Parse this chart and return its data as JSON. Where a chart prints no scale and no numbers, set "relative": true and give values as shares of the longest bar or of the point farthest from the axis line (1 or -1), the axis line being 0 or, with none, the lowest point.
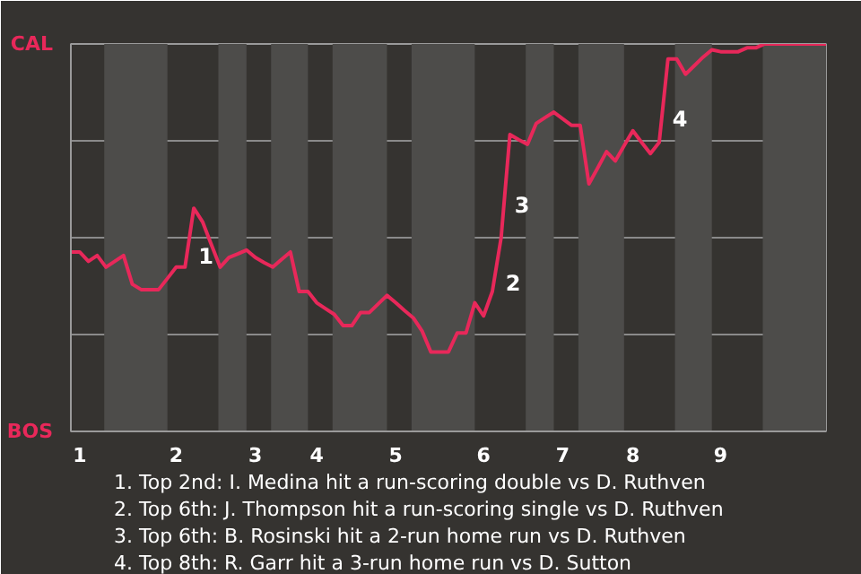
{
  "chart_data": {
    "type": "line",
    "relative": true,
    "categories": [
      null,
      "1",
      null,
      null,
      null,
      null,
      null,
      null,
      null,
      null,
      null,
      null,
      "2",
      null,
      null,
      null,
      null,
      null,
      null,
      null,
      null,
      "3",
      null,
      null,
      null,
      null,
      null,
      null,
      "4",
      null,
      null,
      null,
      null,
      null,
      null,
      null,
      null,
      "5",
      null,
      null,
      null,
      null,
      null,
      null,
      null,
      null,
      null,
      "6",
      null,
      null,
      null,
      null,
      null,
      null,
      null,
      null,
      "7",
      null,
      null,
      null,
      null,
      null,
      null,
      null,
      "8",
      null,
      null,
      null,
      null,
      null,
      null,
      null,
      null,
      null,
      "9",
      null,
      null,
      null,
      null,
      null,
      null,
      null,
      null,
      null,
      null,
      null,
      null
    ],
    "series": [
      {
        "color": "#e8285a",
        "values": [
          0.463,
          0.463,
          0.439,
          0.454,
          0.424,
          0.439,
          0.454,
          0.38,
          0.366,
          0.366,
          0.366,
          0.395,
          0.424,
          0.424,
          0.576,
          0.541,
          0.482,
          0.424,
          0.449,
          0.458,
          0.468,
          0.449,
          0.436,
          0.424,
          0.444,
          0.463,
          0.361,
          0.361,
          0.332,
          0.317,
          0.302,
          0.273,
          0.273,
          0.307,
          0.307,
          0.329,
          0.351,
          0.332,
          0.312,
          0.293,
          0.259,
          0.205,
          0.205,
          0.205,
          0.254,
          0.254,
          0.332,
          0.298,
          0.361,
          0.5,
          0.766,
          0.753,
          0.741,
          0.795,
          0.81,
          0.824,
          0.807,
          0.79,
          0.79,
          0.639,
          0.68,
          0.722,
          0.698,
          0.737,
          0.776,
          0.746,
          0.717,
          0.746,
          0.961,
          0.961,
          0.922,
          0.944,
          0.966,
          0.985,
          0.98,
          0.98,
          0.98,
          0.99,
          0.99,
          1.0,
          1.0,
          1.0,
          1.0,
          1.0,
          1.0,
          1.0,
          1.0
        ]
      }
    ],
    "grid": "y",
    "annotations": [
      "CAL",
      "BOS",
      "1",
      "2",
      "3",
      "4",
      "1. Top 2nd: I. Medina hit a run-scoring double vs D. Ruthven",
      "2. Top 6th: J. Thompson hit a run-scoring single vs D. Ruthven",
      "3. Top 6th: B. Rosinski hit a 2-run home run vs D. Ruthven",
      "4. Top 8th: R. Garr hit a 3-run home run vs D. Sutton"
    ]
  }
}
